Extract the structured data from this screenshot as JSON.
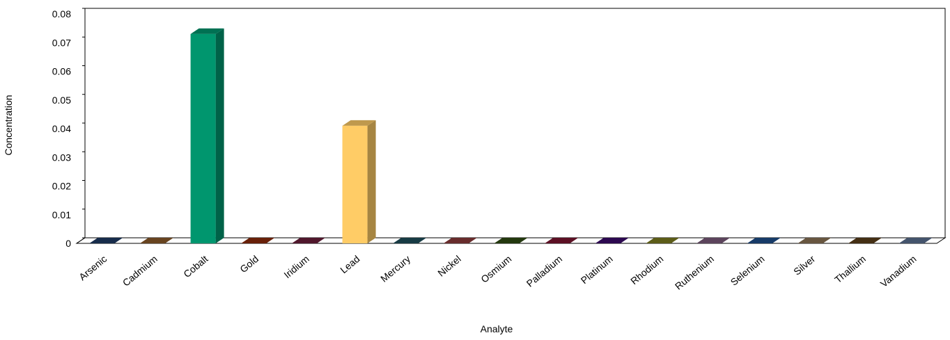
{
  "chart_data": {
    "type": "bar3d",
    "x_label": "Analyte",
    "y_label": "Concentration",
    "categories": [
      "Arsenic",
      "Cadmium",
      "Cobalt",
      "Gold",
      "Iridium",
      "Lead",
      "Mercury",
      "Nickel",
      "Osmium",
      "Palladium",
      "Platinum",
      "Rhodium",
      "Ruthenium",
      "Selenium",
      "Silver",
      "Thallium",
      "Vanadium"
    ],
    "values": [
      0,
      0,
      0.073,
      0,
      0,
      0.041,
      0,
      0,
      0,
      0,
      0,
      0,
      0,
      0,
      0,
      0,
      0
    ],
    "colors": [
      "#1f3a64",
      "#8b5a2b",
      "#00966e",
      "#8b2a0a",
      "#6b1e3a",
      "#ffcc66",
      "#1f4e5a",
      "#8b3a3a",
      "#2e4a12",
      "#7a1530",
      "#3a0a6b",
      "#7a7a20",
      "#7a5a7a",
      "#1f4e8b",
      "#8b7355",
      "#5a3e1b",
      "#5a7090"
    ],
    "ylim": [
      0,
      0.08
    ],
    "yticks": [
      0,
      0.01,
      0.02,
      0.03,
      0.04,
      0.05,
      0.06,
      0.07,
      0.08
    ]
  }
}
